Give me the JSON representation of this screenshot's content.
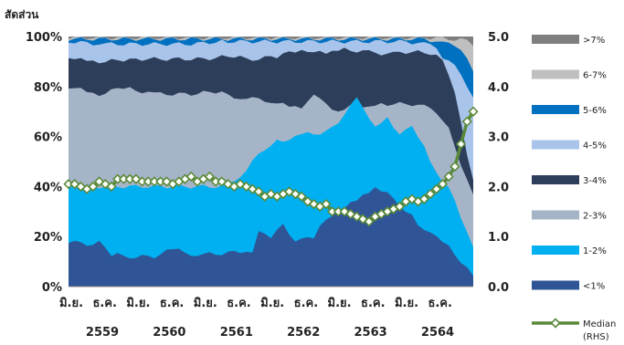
{
  "chart_data": {
    "type": "area",
    "ylabel": "สัดส่วน",
    "left_axis": {
      "min": 0,
      "max": 100,
      "ticks": [
        "0%",
        "20%",
        "40%",
        "60%",
        "80%",
        "100%"
      ]
    },
    "right_axis": {
      "min": 0,
      "max": 5,
      "ticks": [
        "0.0",
        "1.0",
        "2.0",
        "3.0",
        "4.0",
        "5.0"
      ]
    },
    "x_tick_labels": [
      "มิ.ย.",
      "ธ.ค.",
      "มิ.ย.",
      "ธ.ค.",
      "มิ.ย.",
      "ธ.ค.",
      "มิ.ย.",
      "ธ.ค.",
      "มิ.ย.",
      "ธ.ค.",
      "มิ.ย.",
      "ธ.ค."
    ],
    "year_labels": [
      "2559",
      "2560",
      "2561",
      "2562",
      "2563",
      "2564"
    ],
    "legend": [
      {
        "name": ">7%",
        "color": "#7f7f7f"
      },
      {
        "name": "6-7%",
        "color": "#bfbfbf"
      },
      {
        "name": "5-6%",
        "color": "#0070c0"
      },
      {
        "name": "4-5%",
        "color": "#a9c4ea"
      },
      {
        "name": "3-4%",
        "color": "#2c3e5a"
      },
      {
        "name": "2-3%",
        "color": "#a6b4c8"
      },
      {
        "name": "1-2%",
        "color": "#00b0f0"
      },
      {
        "name": "<1%",
        "color": "#2f5597"
      },
      {
        "name": "Median",
        "sub": "(RHS)",
        "color": "#5b8a3a"
      }
    ],
    "n_points": 67,
    "series_keys": [
      "&lt;1%",
      "1-2%",
      "2-3%",
      "3-4%",
      "4-5%",
      "5-6%",
      "6-7%",
      "&gt;7%"
    ],
    "cumulative": {
      "lt1": [
        [
          0,
          18
        ],
        [
          3,
          17
        ],
        [
          5,
          18
        ],
        [
          7,
          13
        ],
        [
          10,
          12
        ],
        [
          14,
          12
        ],
        [
          17,
          15
        ],
        [
          20,
          13
        ],
        [
          24,
          13
        ],
        [
          28,
          14
        ],
        [
          30,
          13
        ],
        [
          31,
          22
        ],
        [
          33,
          19
        ],
        [
          35,
          25
        ],
        [
          37,
          18
        ],
        [
          40,
          20
        ],
        [
          42,
          27
        ],
        [
          44,
          30
        ],
        [
          46,
          33
        ],
        [
          48,
          36
        ],
        [
          50,
          39
        ],
        [
          52,
          37
        ],
        [
          54,
          32
        ],
        [
          56,
          28
        ],
        [
          58,
          22
        ],
        [
          60,
          21
        ],
        [
          62,
          16
        ],
        [
          64,
          10
        ],
        [
          66,
          4
        ]
      ],
      "c12": [
        [
          0,
          40
        ],
        [
          5,
          40
        ],
        [
          10,
          40
        ],
        [
          15,
          40
        ],
        [
          20,
          40
        ],
        [
          25,
          40
        ],
        [
          28,
          44
        ],
        [
          30,
          50
        ],
        [
          32,
          55
        ],
        [
          34,
          59
        ],
        [
          36,
          58
        ],
        [
          38,
          61
        ],
        [
          40,
          61
        ],
        [
          42,
          62
        ],
        [
          44,
          66
        ],
        [
          46,
          73
        ],
        [
          47,
          75
        ],
        [
          48,
          72
        ],
        [
          50,
          64
        ],
        [
          52,
          67
        ],
        [
          54,
          60
        ],
        [
          56,
          65
        ],
        [
          58,
          56
        ],
        [
          60,
          45
        ],
        [
          62,
          40
        ],
        [
          63,
          34
        ],
        [
          64,
          28
        ],
        [
          66,
          15
        ]
      ],
      "c23": [
        [
          0,
          80
        ],
        [
          3,
          78
        ],
        [
          5,
          77
        ],
        [
          8,
          79
        ],
        [
          10,
          79
        ],
        [
          14,
          77
        ],
        [
          17,
          77
        ],
        [
          20,
          77
        ],
        [
          24,
          78
        ],
        [
          27,
          76
        ],
        [
          30,
          75
        ],
        [
          33,
          74
        ],
        [
          36,
          72
        ],
        [
          38,
          72
        ],
        [
          40,
          76
        ],
        [
          44,
          70
        ],
        [
          46,
          70
        ],
        [
          48,
          70
        ],
        [
          50,
          73
        ],
        [
          53,
          73
        ],
        [
          56,
          73
        ],
        [
          58,
          72
        ],
        [
          60,
          70
        ],
        [
          62,
          64
        ],
        [
          63,
          55
        ],
        [
          64,
          48
        ],
        [
          65,
          42
        ],
        [
          66,
          37
        ]
      ],
      "c34": [
        [
          0,
          92
        ],
        [
          3,
          90
        ],
        [
          6,
          90
        ],
        [
          10,
          91
        ],
        [
          14,
          91
        ],
        [
          18,
          91
        ],
        [
          22,
          91
        ],
        [
          26,
          92
        ],
        [
          30,
          91
        ],
        [
          34,
          92
        ],
        [
          38,
          95
        ],
        [
          42,
          93
        ],
        [
          44,
          95
        ],
        [
          48,
          94
        ],
        [
          52,
          93
        ],
        [
          56,
          94
        ],
        [
          58,
          94
        ],
        [
          60,
          92
        ],
        [
          61,
          90
        ],
        [
          62,
          84
        ],
        [
          63,
          77
        ],
        [
          64,
          66
        ],
        [
          65,
          52
        ],
        [
          66,
          42
        ]
      ],
      "c45": [
        [
          0,
          98
        ],
        [
          5,
          97
        ],
        [
          10,
          97
        ],
        [
          15,
          97
        ],
        [
          20,
          97
        ],
        [
          25,
          98
        ],
        [
          30,
          98
        ],
        [
          35,
          98
        ],
        [
          40,
          98
        ],
        [
          45,
          98
        ],
        [
          50,
          98
        ],
        [
          55,
          98
        ],
        [
          58,
          97
        ],
        [
          60,
          96
        ],
        [
          61,
          92
        ],
        [
          62,
          90
        ],
        [
          63,
          88
        ],
        [
          64,
          84
        ],
        [
          65,
          80
        ],
        [
          66,
          76
        ]
      ],
      "c56": [
        [
          0,
          99
        ],
        [
          10,
          99
        ],
        [
          20,
          99
        ],
        [
          30,
          99
        ],
        [
          40,
          99
        ],
        [
          50,
          99
        ],
        [
          58,
          99
        ],
        [
          60,
          98
        ],
        [
          62,
          97
        ],
        [
          63,
          96
        ],
        [
          64,
          95
        ],
        [
          65,
          92
        ],
        [
          66,
          86
        ]
      ],
      "c67": [
        [
          0,
          99.6
        ],
        [
          30,
          99.6
        ],
        [
          58,
          99.6
        ],
        [
          60,
          99.4
        ],
        [
          62,
          99
        ],
        [
          64,
          99
        ],
        [
          65,
          98
        ],
        [
          66,
          96
        ]
      ],
      "c7": [
        [
          0,
          100
        ],
        [
          66,
          100
        ]
      ]
    },
    "median_rhs": [
      2.05,
      2.05,
      2.0,
      1.95,
      2.0,
      2.1,
      2.05,
      2.0,
      2.15,
      2.15,
      2.15,
      2.15,
      2.1,
      2.1,
      2.1,
      2.1,
      2.1,
      2.05,
      2.1,
      2.15,
      2.2,
      2.1,
      2.15,
      2.2,
      2.1,
      2.1,
      2.05,
      2.0,
      2.05,
      2.0,
      1.95,
      1.9,
      1.8,
      1.85,
      1.8,
      1.85,
      1.9,
      1.85,
      1.8,
      1.7,
      1.65,
      1.6,
      1.65,
      1.5,
      1.5,
      1.5,
      1.45,
      1.4,
      1.35,
      1.3,
      1.4,
      1.45,
      1.5,
      1.55,
      1.6,
      1.7,
      1.75,
      1.7,
      1.75,
      1.85,
      1.95,
      2.05,
      2.2,
      2.4,
      2.85,
      3.3,
      3.5
    ]
  }
}
